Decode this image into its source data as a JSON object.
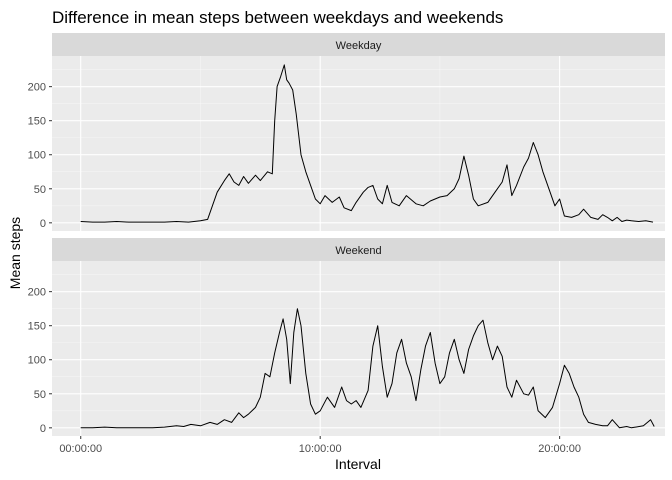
{
  "chart_data": {
    "type": "line",
    "title": "Difference in mean steps between weekdays and weekends",
    "xlabel": "Interval",
    "ylabel": "Mean steps",
    "x_unit": "hours since 00:00:00",
    "xlim": [
      -1.2,
      24.4
    ],
    "ylim": [
      -12,
      245
    ],
    "x_ticks": [
      {
        "value": 0,
        "label": "00:00:00"
      },
      {
        "value": 10,
        "label": "10:00:00"
      },
      {
        "value": 20,
        "label": "20:00:00"
      }
    ],
    "y_ticks": [
      {
        "value": 0,
        "label": "0"
      },
      {
        "value": 50,
        "label": "50"
      },
      {
        "value": 100,
        "label": "100"
      },
      {
        "value": 150,
        "label": "150"
      },
      {
        "value": 200,
        "label": "200"
      }
    ],
    "grid": true,
    "colors": {
      "panel_bg": "#ebebeb",
      "strip_bg": "#d9d9d9",
      "grid_major": "#ffffff",
      "line": "#000000"
    },
    "panels": [
      {
        "label": "Weekday",
        "points": [
          [
            0,
            2
          ],
          [
            0.5,
            1
          ],
          [
            1,
            1
          ],
          [
            1.5,
            2
          ],
          [
            2,
            1
          ],
          [
            2.5,
            1
          ],
          [
            3,
            1
          ],
          [
            3.5,
            1
          ],
          [
            4,
            2
          ],
          [
            4.5,
            1
          ],
          [
            5,
            3
          ],
          [
            5.3,
            5
          ],
          [
            5.5,
            25
          ],
          [
            5.7,
            45
          ],
          [
            6,
            62
          ],
          [
            6.2,
            72
          ],
          [
            6.4,
            60
          ],
          [
            6.6,
            55
          ],
          [
            6.8,
            68
          ],
          [
            7,
            58
          ],
          [
            7.3,
            70
          ],
          [
            7.5,
            62
          ],
          [
            7.8,
            75
          ],
          [
            8,
            72
          ],
          [
            8.1,
            150
          ],
          [
            8.2,
            200
          ],
          [
            8.35,
            215
          ],
          [
            8.5,
            232
          ],
          [
            8.6,
            210
          ],
          [
            8.7,
            205
          ],
          [
            8.85,
            195
          ],
          [
            9,
            160
          ],
          [
            9.2,
            100
          ],
          [
            9.4,
            75
          ],
          [
            9.6,
            55
          ],
          [
            9.8,
            35
          ],
          [
            10,
            28
          ],
          [
            10.2,
            40
          ],
          [
            10.5,
            30
          ],
          [
            10.8,
            38
          ],
          [
            11,
            22
          ],
          [
            11.3,
            18
          ],
          [
            11.5,
            30
          ],
          [
            11.8,
            45
          ],
          [
            12,
            52
          ],
          [
            12.2,
            55
          ],
          [
            12.4,
            35
          ],
          [
            12.6,
            28
          ],
          [
            12.8,
            55
          ],
          [
            13,
            30
          ],
          [
            13.3,
            25
          ],
          [
            13.6,
            40
          ],
          [
            14,
            28
          ],
          [
            14.3,
            25
          ],
          [
            14.6,
            32
          ],
          [
            15,
            38
          ],
          [
            15.3,
            40
          ],
          [
            15.6,
            50
          ],
          [
            15.8,
            65
          ],
          [
            16,
            98
          ],
          [
            16.2,
            70
          ],
          [
            16.4,
            35
          ],
          [
            16.6,
            25
          ],
          [
            17,
            30
          ],
          [
            17.3,
            45
          ],
          [
            17.6,
            60
          ],
          [
            17.8,
            85
          ],
          [
            18,
            40
          ],
          [
            18.2,
            55
          ],
          [
            18.5,
            82
          ],
          [
            18.7,
            95
          ],
          [
            18.9,
            118
          ],
          [
            19.1,
            100
          ],
          [
            19.3,
            75
          ],
          [
            19.6,
            45
          ],
          [
            19.8,
            25
          ],
          [
            20,
            35
          ],
          [
            20.2,
            10
          ],
          [
            20.5,
            8
          ],
          [
            20.8,
            12
          ],
          [
            21,
            20
          ],
          [
            21.3,
            8
          ],
          [
            21.6,
            5
          ],
          [
            21.8,
            12
          ],
          [
            22,
            8
          ],
          [
            22.2,
            3
          ],
          [
            22.4,
            8
          ],
          [
            22.6,
            2
          ],
          [
            22.8,
            4
          ],
          [
            23,
            3
          ],
          [
            23.3,
            2
          ],
          [
            23.6,
            3
          ],
          [
            23.9,
            1
          ]
        ]
      },
      {
        "label": "Weekend",
        "points": [
          [
            0,
            0
          ],
          [
            0.5,
            0
          ],
          [
            1,
            1
          ],
          [
            1.5,
            0
          ],
          [
            2,
            0
          ],
          [
            2.5,
            0
          ],
          [
            3,
            0
          ],
          [
            3.5,
            1
          ],
          [
            4,
            3
          ],
          [
            4.3,
            2
          ],
          [
            4.6,
            5
          ],
          [
            5,
            3
          ],
          [
            5.4,
            8
          ],
          [
            5.7,
            5
          ],
          [
            6,
            12
          ],
          [
            6.3,
            8
          ],
          [
            6.6,
            22
          ],
          [
            6.8,
            15
          ],
          [
            7,
            20
          ],
          [
            7.3,
            30
          ],
          [
            7.5,
            45
          ],
          [
            7.7,
            80
          ],
          [
            7.9,
            75
          ],
          [
            8.1,
            110
          ],
          [
            8.3,
            140
          ],
          [
            8.45,
            160
          ],
          [
            8.6,
            130
          ],
          [
            8.75,
            65
          ],
          [
            8.9,
            140
          ],
          [
            9.05,
            175
          ],
          [
            9.2,
            150
          ],
          [
            9.4,
            80
          ],
          [
            9.6,
            35
          ],
          [
            9.8,
            20
          ],
          [
            10,
            25
          ],
          [
            10.3,
            45
          ],
          [
            10.6,
            30
          ],
          [
            10.9,
            60
          ],
          [
            11.1,
            40
          ],
          [
            11.3,
            35
          ],
          [
            11.5,
            40
          ],
          [
            11.7,
            30
          ],
          [
            12,
            55
          ],
          [
            12.2,
            120
          ],
          [
            12.4,
            150
          ],
          [
            12.6,
            90
          ],
          [
            12.8,
            45
          ],
          [
            13,
            65
          ],
          [
            13.2,
            110
          ],
          [
            13.4,
            130
          ],
          [
            13.6,
            95
          ],
          [
            13.8,
            75
          ],
          [
            14,
            40
          ],
          [
            14.2,
            85
          ],
          [
            14.4,
            120
          ],
          [
            14.6,
            140
          ],
          [
            14.8,
            95
          ],
          [
            15,
            65
          ],
          [
            15.2,
            75
          ],
          [
            15.4,
            110
          ],
          [
            15.6,
            130
          ],
          [
            15.8,
            100
          ],
          [
            16,
            80
          ],
          [
            16.2,
            115
          ],
          [
            16.4,
            135
          ],
          [
            16.6,
            150
          ],
          [
            16.8,
            158
          ],
          [
            17,
            125
          ],
          [
            17.2,
            100
          ],
          [
            17.4,
            120
          ],
          [
            17.6,
            105
          ],
          [
            17.8,
            60
          ],
          [
            18,
            45
          ],
          [
            18.2,
            70
          ],
          [
            18.5,
            50
          ],
          [
            18.7,
            48
          ],
          [
            18.9,
            60
          ],
          [
            19.1,
            25
          ],
          [
            19.4,
            15
          ],
          [
            19.7,
            30
          ],
          [
            20,
            65
          ],
          [
            20.2,
            92
          ],
          [
            20.4,
            80
          ],
          [
            20.6,
            60
          ],
          [
            20.8,
            45
          ],
          [
            21,
            20
          ],
          [
            21.2,
            8
          ],
          [
            21.5,
            5
          ],
          [
            21.8,
            3
          ],
          [
            22,
            3
          ],
          [
            22.2,
            12
          ],
          [
            22.5,
            0
          ],
          [
            22.8,
            2
          ],
          [
            23,
            0
          ],
          [
            23.5,
            3
          ],
          [
            23.8,
            12
          ],
          [
            23.95,
            2
          ]
        ]
      }
    ]
  }
}
